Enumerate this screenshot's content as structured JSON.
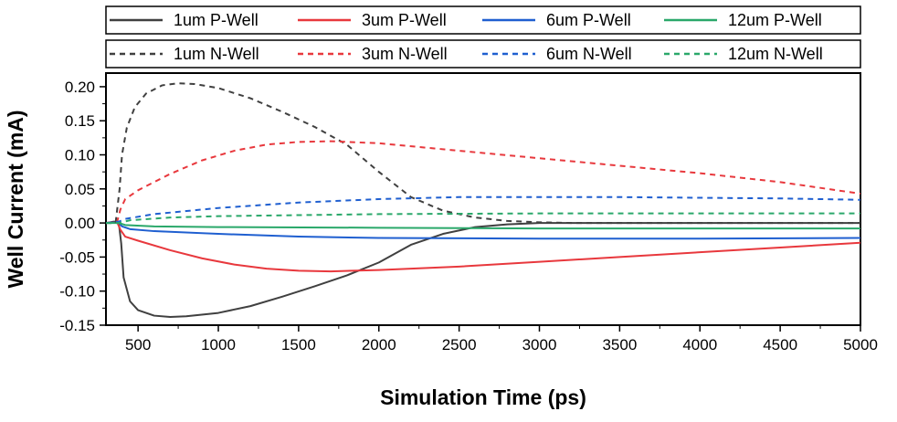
{
  "chart_data": {
    "type": "line",
    "title": "",
    "xlabel": "Simulation Time (ps)",
    "ylabel": "Well Current (mA)",
    "xlim": [
      300,
      5000
    ],
    "ylim": [
      -0.15,
      0.22
    ],
    "xticks": [
      500,
      1000,
      1500,
      2000,
      2500,
      3000,
      3500,
      4000,
      4500,
      5000
    ],
    "yticks": [
      -0.15,
      -0.1,
      -0.05,
      0.0,
      0.05,
      0.1,
      0.15,
      0.2
    ],
    "xtick_labels": [
      "500",
      "1000",
      "1500",
      "2000",
      "2500",
      "3000",
      "3500",
      "4000",
      "4500",
      "5000"
    ],
    "ytick_labels": [
      "-0.15",
      "-0.10",
      "-0.05",
      "0.00",
      "0.05",
      "0.10",
      "0.15",
      "0.20"
    ],
    "grid": false,
    "legend_position": "top",
    "series": [
      {
        "name": "1um P-Well",
        "color": "#404040",
        "dash": "solid",
        "points": [
          [
            300,
            0
          ],
          [
            350,
            0.002
          ],
          [
            380,
            0
          ],
          [
            395,
            -0.03
          ],
          [
            410,
            -0.08
          ],
          [
            450,
            -0.115
          ],
          [
            500,
            -0.128
          ],
          [
            600,
            -0.136
          ],
          [
            700,
            -0.138
          ],
          [
            800,
            -0.137
          ],
          [
            1000,
            -0.132
          ],
          [
            1200,
            -0.122
          ],
          [
            1400,
            -0.108
          ],
          [
            1600,
            -0.093
          ],
          [
            1800,
            -0.077
          ],
          [
            2000,
            -0.058
          ],
          [
            2200,
            -0.032
          ],
          [
            2400,
            -0.016
          ],
          [
            2600,
            -0.006
          ],
          [
            2800,
            -0.002
          ],
          [
            3000,
            0
          ],
          [
            5000,
            0
          ]
        ]
      },
      {
        "name": "3um P-Well",
        "color": "#e8383d",
        "dash": "solid",
        "points": [
          [
            300,
            0
          ],
          [
            370,
            0.001
          ],
          [
            390,
            -0.01
          ],
          [
            420,
            -0.02
          ],
          [
            500,
            -0.026
          ],
          [
            700,
            -0.04
          ],
          [
            900,
            -0.052
          ],
          [
            1100,
            -0.061
          ],
          [
            1300,
            -0.067
          ],
          [
            1500,
            -0.07
          ],
          [
            1700,
            -0.071
          ],
          [
            2000,
            -0.069
          ],
          [
            2500,
            -0.064
          ],
          [
            3000,
            -0.057
          ],
          [
            3500,
            -0.05
          ],
          [
            4000,
            -0.043
          ],
          [
            4500,
            -0.036
          ],
          [
            5000,
            -0.029
          ]
        ]
      },
      {
        "name": "6um P-Well",
        "color": "#1f5fd0",
        "dash": "solid",
        "points": [
          [
            300,
            0
          ],
          [
            380,
            0.001
          ],
          [
            400,
            -0.005
          ],
          [
            450,
            -0.009
          ],
          [
            600,
            -0.012
          ],
          [
            1000,
            -0.016
          ],
          [
            1500,
            -0.02
          ],
          [
            2000,
            -0.022
          ],
          [
            3000,
            -0.023
          ],
          [
            4000,
            -0.023
          ],
          [
            5000,
            -0.022
          ]
        ]
      },
      {
        "name": "12um P-Well",
        "color": "#2aa86a",
        "dash": "solid",
        "points": [
          [
            300,
            0
          ],
          [
            380,
            0
          ],
          [
            420,
            -0.003
          ],
          [
            600,
            -0.005
          ],
          [
            1000,
            -0.006
          ],
          [
            2000,
            -0.007
          ],
          [
            3000,
            -0.008
          ],
          [
            4000,
            -0.008
          ],
          [
            5000,
            -0.008
          ]
        ]
      },
      {
        "name": "1um N-Well",
        "color": "#404040",
        "dash": "dashed",
        "points": [
          [
            300,
            0
          ],
          [
            360,
            0
          ],
          [
            385,
            0.05
          ],
          [
            400,
            0.1
          ],
          [
            430,
            0.14
          ],
          [
            480,
            0.17
          ],
          [
            550,
            0.19
          ],
          [
            650,
            0.202
          ],
          [
            750,
            0.205
          ],
          [
            850,
            0.204
          ],
          [
            1000,
            0.198
          ],
          [
            1200,
            0.183
          ],
          [
            1400,
            0.163
          ],
          [
            1600,
            0.141
          ],
          [
            1800,
            0.115
          ],
          [
            2000,
            0.075
          ],
          [
            2200,
            0.038
          ],
          [
            2400,
            0.018
          ],
          [
            2600,
            0.008
          ],
          [
            2800,
            0.003
          ],
          [
            3000,
            0.001
          ],
          [
            3200,
            0
          ],
          [
            5000,
            0
          ]
        ]
      },
      {
        "name": "3um N-Well",
        "color": "#e8383d",
        "dash": "dashed",
        "points": [
          [
            300,
            0
          ],
          [
            370,
            0.002
          ],
          [
            390,
            0.02
          ],
          [
            420,
            0.035
          ],
          [
            500,
            0.048
          ],
          [
            700,
            0.072
          ],
          [
            900,
            0.092
          ],
          [
            1100,
            0.106
          ],
          [
            1300,
            0.115
          ],
          [
            1500,
            0.119
          ],
          [
            1700,
            0.12
          ],
          [
            2000,
            0.117
          ],
          [
            2500,
            0.106
          ],
          [
            3000,
            0.095
          ],
          [
            3500,
            0.084
          ],
          [
            4000,
            0.073
          ],
          [
            4500,
            0.06
          ],
          [
            5000,
            0.043
          ]
        ]
      },
      {
        "name": "6um N-Well",
        "color": "#1f5fd0",
        "dash": "dashed",
        "points": [
          [
            300,
            0
          ],
          [
            380,
            0.002
          ],
          [
            420,
            0.006
          ],
          [
            600,
            0.013
          ],
          [
            1000,
            0.022
          ],
          [
            1500,
            0.03
          ],
          [
            2000,
            0.035
          ],
          [
            2500,
            0.038
          ],
          [
            3000,
            0.038
          ],
          [
            3500,
            0.038
          ],
          [
            4000,
            0.037
          ],
          [
            4500,
            0.036
          ],
          [
            5000,
            0.034
          ]
        ]
      },
      {
        "name": "12um N-Well",
        "color": "#2aa86a",
        "dash": "dashed",
        "points": [
          [
            300,
            0
          ],
          [
            380,
            0
          ],
          [
            450,
            0.004
          ],
          [
            700,
            0.008
          ],
          [
            1000,
            0.01
          ],
          [
            2000,
            0.013
          ],
          [
            3000,
            0.014
          ],
          [
            4000,
            0.014
          ],
          [
            5000,
            0.014
          ]
        ]
      }
    ]
  }
}
